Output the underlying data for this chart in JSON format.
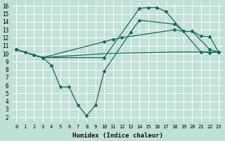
{
  "xlabel": "Humidex (Indice chaleur)",
  "background_color": "#c0e0d8",
  "grid_color": "#ffffff",
  "line_color": "#1a6b5a",
  "xlim": [
    -0.5,
    23.5
  ],
  "ylim": [
    1.5,
    16.5
  ],
  "xticks": [
    0,
    1,
    2,
    3,
    4,
    5,
    6,
    7,
    8,
    9,
    10,
    11,
    12,
    13,
    14,
    15,
    16,
    17,
    18,
    19,
    20,
    21,
    22,
    23
  ],
  "yticks": [
    2,
    3,
    4,
    5,
    6,
    7,
    8,
    9,
    10,
    11,
    12,
    13,
    14,
    15,
    16
  ],
  "line1_x": [
    0,
    1,
    2,
    3,
    10,
    14,
    15,
    16,
    17,
    21,
    22,
    23
  ],
  "line1_y": [
    10.5,
    10.2,
    9.8,
    9.5,
    9.5,
    15.7,
    15.8,
    15.8,
    15.3,
    10.2,
    10.1,
    10.2
  ],
  "line2_x": [
    0,
    2,
    3,
    4,
    5,
    6,
    7,
    8,
    9,
    10,
    13,
    14,
    18,
    19,
    20,
    21,
    22,
    23
  ],
  "line2_y": [
    10.5,
    9.8,
    9.5,
    8.5,
    5.8,
    5.8,
    3.5,
    2.2,
    3.5,
    7.8,
    12.7,
    14.2,
    13.7,
    12.8,
    12.8,
    12.2,
    12.1,
    10.2
  ],
  "line3_x": [
    0,
    3,
    10,
    11,
    12,
    18,
    19,
    20,
    22,
    23
  ],
  "line3_y": [
    10.5,
    9.5,
    11.5,
    11.8,
    12.0,
    13.0,
    12.8,
    12.8,
    10.5,
    10.2
  ],
  "line4_x": [
    0,
    3,
    10,
    18,
    22,
    23
  ],
  "line4_y": [
    10.5,
    9.5,
    10.0,
    10.2,
    10.2,
    10.2
  ],
  "marker": "D",
  "marker_size": 2.0,
  "linewidth": 0.9,
  "xlabel_fontsize": 6.5,
  "tick_fontsize": 5.0
}
